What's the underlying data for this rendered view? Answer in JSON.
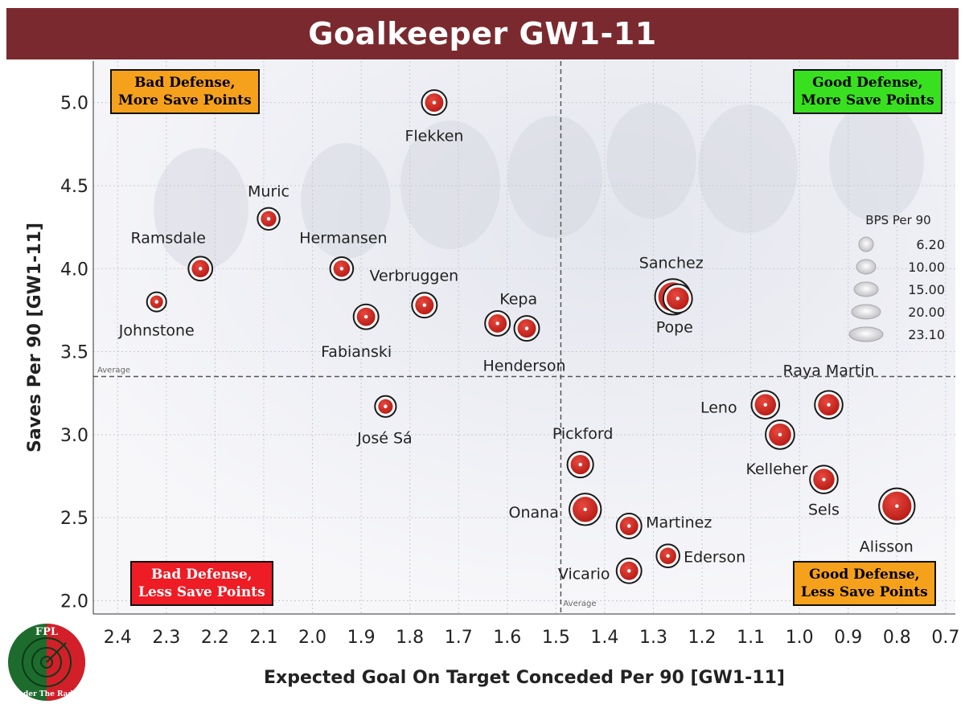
{
  "header": {
    "title": "Goalkeeper GW1-11"
  },
  "quadrants": {
    "top_left": {
      "line1": "Bad Defense,",
      "line2": "More Save Points",
      "color": "#f5a11c"
    },
    "top_right": {
      "line1": "Good Defense,",
      "line2": "More Save Points",
      "color": "#39e01f"
    },
    "bottom_left": {
      "line1": "Bad Defense,",
      "line2": "Less Save Points",
      "color": "#ee1c25"
    },
    "bottom_right": {
      "line1": "Good Defense,",
      "line2": "Less Save Points",
      "color": "#f5a11c"
    }
  },
  "logo": {
    "top": "FPL",
    "bottom": "Under The Radar"
  },
  "chart_data": {
    "type": "scatter",
    "xlabel": "Expected Goal On Target Conceded Per 90 [GW1-11]",
    "ylabel": "Saves Per 90 [GW1-11]",
    "xlim": [
      2.45,
      0.68
    ],
    "ylim": [
      1.92,
      5.25
    ],
    "x_reversed": true,
    "xticks": [
      2.4,
      2.3,
      2.2,
      2.1,
      2.0,
      1.9,
      1.8,
      1.7,
      1.6,
      1.5,
      1.4,
      1.3,
      1.2,
      1.1,
      1.0,
      0.9,
      0.8,
      0.7
    ],
    "yticks": [
      2.0,
      2.5,
      3.0,
      3.5,
      4.0,
      4.5,
      5.0
    ],
    "average_x": 1.49,
    "average_y": 3.35,
    "average_label": "Average",
    "grid": true,
    "size_legend": {
      "title": "BPS Per 90",
      "placement": "right",
      "values": [
        "6.20",
        "10.00",
        "15.00",
        "20.00",
        "23.10"
      ]
    },
    "marker_color": "#d42a22",
    "points": [
      {
        "name": "Flekken",
        "x": 1.75,
        "y": 5.0,
        "bps": 12
      },
      {
        "name": "Muric",
        "x": 2.09,
        "y": 4.3,
        "bps": 9
      },
      {
        "name": "Ramsdale",
        "x": 2.23,
        "y": 4.0,
        "bps": 11
      },
      {
        "name": "Hermansen",
        "x": 1.94,
        "y": 4.0,
        "bps": 10
      },
      {
        "name": "Johnstone",
        "x": 2.32,
        "y": 3.8,
        "bps": 6.2
      },
      {
        "name": "Verbruggen",
        "x": 1.77,
        "y": 3.78,
        "bps": 12
      },
      {
        "name": "Fabianski",
        "x": 1.89,
        "y": 3.71,
        "bps": 12
      },
      {
        "name": "Kepa",
        "x": 1.62,
        "y": 3.67,
        "bps": 12
      },
      {
        "name": "Henderson",
        "x": 1.56,
        "y": 3.64,
        "bps": 12
      },
      {
        "name": "Sanchez",
        "x": 1.26,
        "y": 3.83,
        "bps": 23.1
      },
      {
        "name": "Pope",
        "x": 1.25,
        "y": 3.82,
        "bps": 16
      },
      {
        "name": "José Sá",
        "x": 1.85,
        "y": 3.17,
        "bps": 8
      },
      {
        "name": "Raya Martin",
        "x": 0.94,
        "y": 3.18,
        "bps": 15
      },
      {
        "name": "Leno",
        "x": 1.07,
        "y": 3.18,
        "bps": 15
      },
      {
        "name": "Kelleher",
        "x": 1.04,
        "y": 3.0,
        "bps": 16
      },
      {
        "name": "Pickford",
        "x": 1.45,
        "y": 2.82,
        "bps": 13
      },
      {
        "name": "Sels",
        "x": 0.95,
        "y": 2.73,
        "bps": 15
      },
      {
        "name": "Alisson",
        "x": 0.8,
        "y": 2.57,
        "bps": 23.1
      },
      {
        "name": "Onana",
        "x": 1.44,
        "y": 2.55,
        "bps": 19
      },
      {
        "name": "Martinez",
        "x": 1.35,
        "y": 2.45,
        "bps": 12
      },
      {
        "name": "Ederson",
        "x": 1.27,
        "y": 2.27,
        "bps": 10
      },
      {
        "name": "Vicario",
        "x": 1.35,
        "y": 2.18,
        "bps": 12
      }
    ]
  }
}
